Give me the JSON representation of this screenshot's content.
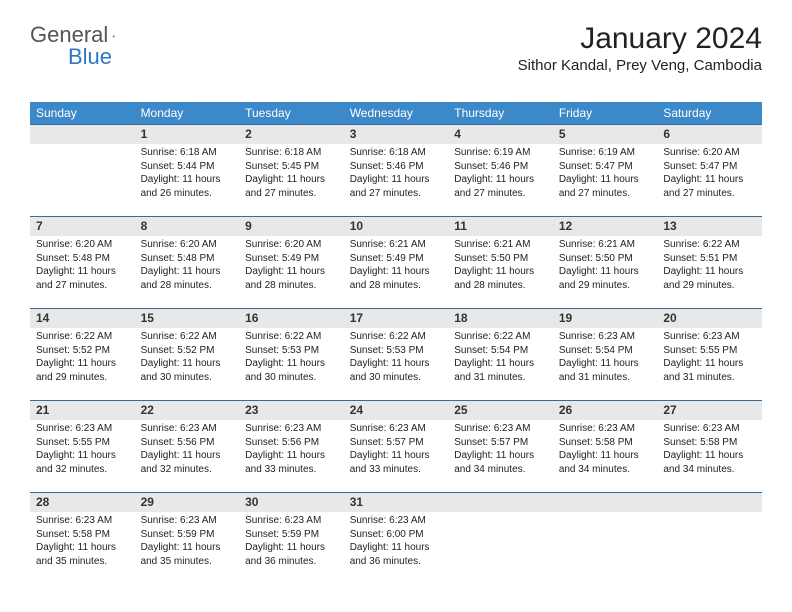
{
  "brand": {
    "part1": "General",
    "part2": "Blue"
  },
  "title": "January 2024",
  "location": "Sithor Kandal, Prey Veng, Cambodia",
  "colors": {
    "header_bg": "#3b89c9",
    "header_text": "#ffffff",
    "daynum_bg": "#e7e8e9",
    "rule": "#3b6b95",
    "logo_blue": "#2f78bf"
  },
  "weekdays": [
    "Sunday",
    "Monday",
    "Tuesday",
    "Wednesday",
    "Thursday",
    "Friday",
    "Saturday"
  ],
  "weeks": [
    {
      "nums": [
        "",
        "1",
        "2",
        "3",
        "4",
        "5",
        "6"
      ],
      "cells": [
        null,
        {
          "sr": "Sunrise: 6:18 AM",
          "ss": "Sunset: 5:44 PM",
          "d1": "Daylight: 11 hours",
          "d2": "and 26 minutes."
        },
        {
          "sr": "Sunrise: 6:18 AM",
          "ss": "Sunset: 5:45 PM",
          "d1": "Daylight: 11 hours",
          "d2": "and 27 minutes."
        },
        {
          "sr": "Sunrise: 6:18 AM",
          "ss": "Sunset: 5:46 PM",
          "d1": "Daylight: 11 hours",
          "d2": "and 27 minutes."
        },
        {
          "sr": "Sunrise: 6:19 AM",
          "ss": "Sunset: 5:46 PM",
          "d1": "Daylight: 11 hours",
          "d2": "and 27 minutes."
        },
        {
          "sr": "Sunrise: 6:19 AM",
          "ss": "Sunset: 5:47 PM",
          "d1": "Daylight: 11 hours",
          "d2": "and 27 minutes."
        },
        {
          "sr": "Sunrise: 6:20 AM",
          "ss": "Sunset: 5:47 PM",
          "d1": "Daylight: 11 hours",
          "d2": "and 27 minutes."
        }
      ]
    },
    {
      "nums": [
        "7",
        "8",
        "9",
        "10",
        "11",
        "12",
        "13"
      ],
      "cells": [
        {
          "sr": "Sunrise: 6:20 AM",
          "ss": "Sunset: 5:48 PM",
          "d1": "Daylight: 11 hours",
          "d2": "and 27 minutes."
        },
        {
          "sr": "Sunrise: 6:20 AM",
          "ss": "Sunset: 5:48 PM",
          "d1": "Daylight: 11 hours",
          "d2": "and 28 minutes."
        },
        {
          "sr": "Sunrise: 6:20 AM",
          "ss": "Sunset: 5:49 PM",
          "d1": "Daylight: 11 hours",
          "d2": "and 28 minutes."
        },
        {
          "sr": "Sunrise: 6:21 AM",
          "ss": "Sunset: 5:49 PM",
          "d1": "Daylight: 11 hours",
          "d2": "and 28 minutes."
        },
        {
          "sr": "Sunrise: 6:21 AM",
          "ss": "Sunset: 5:50 PM",
          "d1": "Daylight: 11 hours",
          "d2": "and 28 minutes."
        },
        {
          "sr": "Sunrise: 6:21 AM",
          "ss": "Sunset: 5:50 PM",
          "d1": "Daylight: 11 hours",
          "d2": "and 29 minutes."
        },
        {
          "sr": "Sunrise: 6:22 AM",
          "ss": "Sunset: 5:51 PM",
          "d1": "Daylight: 11 hours",
          "d2": "and 29 minutes."
        }
      ]
    },
    {
      "nums": [
        "14",
        "15",
        "16",
        "17",
        "18",
        "19",
        "20"
      ],
      "cells": [
        {
          "sr": "Sunrise: 6:22 AM",
          "ss": "Sunset: 5:52 PM",
          "d1": "Daylight: 11 hours",
          "d2": "and 29 minutes."
        },
        {
          "sr": "Sunrise: 6:22 AM",
          "ss": "Sunset: 5:52 PM",
          "d1": "Daylight: 11 hours",
          "d2": "and 30 minutes."
        },
        {
          "sr": "Sunrise: 6:22 AM",
          "ss": "Sunset: 5:53 PM",
          "d1": "Daylight: 11 hours",
          "d2": "and 30 minutes."
        },
        {
          "sr": "Sunrise: 6:22 AM",
          "ss": "Sunset: 5:53 PM",
          "d1": "Daylight: 11 hours",
          "d2": "and 30 minutes."
        },
        {
          "sr": "Sunrise: 6:22 AM",
          "ss": "Sunset: 5:54 PM",
          "d1": "Daylight: 11 hours",
          "d2": "and 31 minutes."
        },
        {
          "sr": "Sunrise: 6:23 AM",
          "ss": "Sunset: 5:54 PM",
          "d1": "Daylight: 11 hours",
          "d2": "and 31 minutes."
        },
        {
          "sr": "Sunrise: 6:23 AM",
          "ss": "Sunset: 5:55 PM",
          "d1": "Daylight: 11 hours",
          "d2": "and 31 minutes."
        }
      ]
    },
    {
      "nums": [
        "21",
        "22",
        "23",
        "24",
        "25",
        "26",
        "27"
      ],
      "cells": [
        {
          "sr": "Sunrise: 6:23 AM",
          "ss": "Sunset: 5:55 PM",
          "d1": "Daylight: 11 hours",
          "d2": "and 32 minutes."
        },
        {
          "sr": "Sunrise: 6:23 AM",
          "ss": "Sunset: 5:56 PM",
          "d1": "Daylight: 11 hours",
          "d2": "and 32 minutes."
        },
        {
          "sr": "Sunrise: 6:23 AM",
          "ss": "Sunset: 5:56 PM",
          "d1": "Daylight: 11 hours",
          "d2": "and 33 minutes."
        },
        {
          "sr": "Sunrise: 6:23 AM",
          "ss": "Sunset: 5:57 PM",
          "d1": "Daylight: 11 hours",
          "d2": "and 33 minutes."
        },
        {
          "sr": "Sunrise: 6:23 AM",
          "ss": "Sunset: 5:57 PM",
          "d1": "Daylight: 11 hours",
          "d2": "and 34 minutes."
        },
        {
          "sr": "Sunrise: 6:23 AM",
          "ss": "Sunset: 5:58 PM",
          "d1": "Daylight: 11 hours",
          "d2": "and 34 minutes."
        },
        {
          "sr": "Sunrise: 6:23 AM",
          "ss": "Sunset: 5:58 PM",
          "d1": "Daylight: 11 hours",
          "d2": "and 34 minutes."
        }
      ]
    },
    {
      "nums": [
        "28",
        "29",
        "30",
        "31",
        "",
        "",
        ""
      ],
      "cells": [
        {
          "sr": "Sunrise: 6:23 AM",
          "ss": "Sunset: 5:58 PM",
          "d1": "Daylight: 11 hours",
          "d2": "and 35 minutes."
        },
        {
          "sr": "Sunrise: 6:23 AM",
          "ss": "Sunset: 5:59 PM",
          "d1": "Daylight: 11 hours",
          "d2": "and 35 minutes."
        },
        {
          "sr": "Sunrise: 6:23 AM",
          "ss": "Sunset: 5:59 PM",
          "d1": "Daylight: 11 hours",
          "d2": "and 36 minutes."
        },
        {
          "sr": "Sunrise: 6:23 AM",
          "ss": "Sunset: 6:00 PM",
          "d1": "Daylight: 11 hours",
          "d2": "and 36 minutes."
        },
        null,
        null,
        null
      ]
    }
  ]
}
